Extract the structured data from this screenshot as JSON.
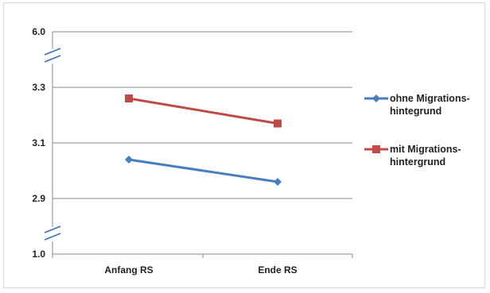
{
  "chart_data": {
    "type": "line",
    "title": "",
    "xlabel": "",
    "ylabel": "",
    "categories": [
      "Anfang RS",
      "Ende RS"
    ],
    "ylim": [
      1.0,
      6.0
    ],
    "y_axis_breaks": [
      [
        1.0,
        2.9
      ],
      [
        3.3,
        6.0
      ]
    ],
    "yticks": [
      "6.0",
      "3.3",
      "3.1",
      "2.9",
      "1.0"
    ],
    "grid": true,
    "legend_position": "right",
    "series": [
      {
        "name": "ohne Migrations-\nhintegrund",
        "name_lines": [
          "ohne Migrations-",
          "hintegrund"
        ],
        "color": "#4a7ebb",
        "marker": "diamond",
        "values": [
          3.04,
          2.96
        ]
      },
      {
        "name": "mit Migrations-\nhintergrund",
        "name_lines": [
          "mit Migrations-",
          "hintergrund"
        ],
        "color": "#be4b48",
        "marker": "square",
        "values": [
          3.26,
          3.17
        ]
      }
    ]
  }
}
